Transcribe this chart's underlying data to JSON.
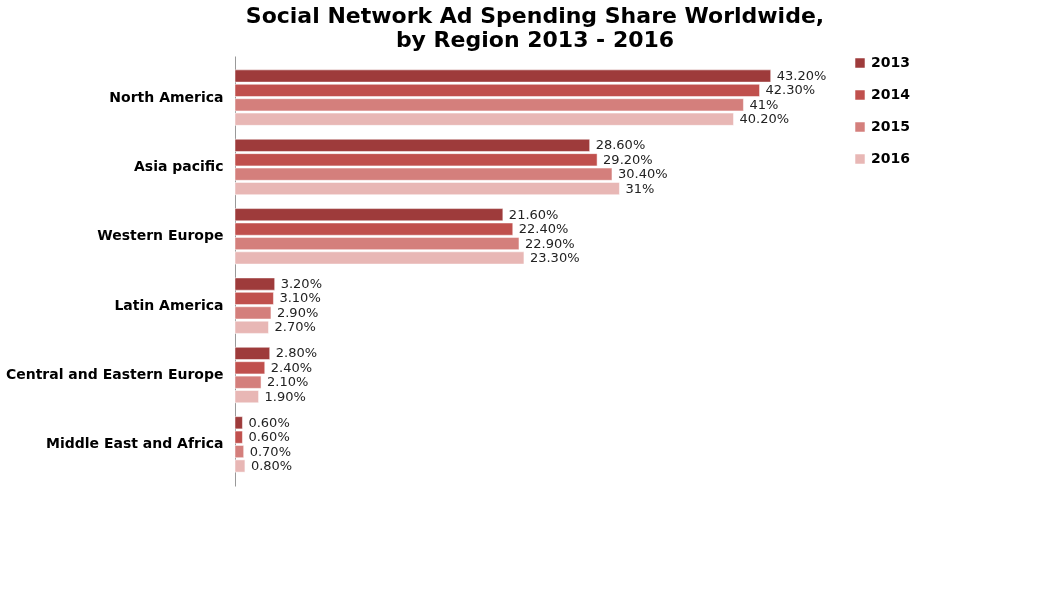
{
  "chart_data": {
    "type": "bar",
    "orientation": "horizontal",
    "title": "Social Network Ad Spending Share Worldwide,\nby Region 2013 - 2016",
    "categories": [
      "North America",
      "Asia pacific",
      "Western Europe",
      "Latin America",
      "Central and Eastern Europe",
      "Middle East and Africa"
    ],
    "series": [
      {
        "name": "2013",
        "color": "#9e3b3b",
        "values": [
          43.2,
          28.6,
          21.6,
          3.2,
          2.8,
          0.6
        ],
        "value_labels": [
          "43.20%",
          "28.60%",
          "21.60%",
          "3.20%",
          "2.80%",
          "0.60%"
        ]
      },
      {
        "name": "2014",
        "color": "#c0504d",
        "values": [
          42.3,
          29.2,
          22.4,
          3.1,
          2.4,
          0.6
        ],
        "value_labels": [
          "42.30%",
          "29.20%",
          "22.40%",
          "3.10%",
          "2.40%",
          "0.60%"
        ]
      },
      {
        "name": "2015",
        "color": "#d47f7c",
        "values": [
          41,
          30.4,
          22.9,
          2.9,
          2.1,
          0.7
        ],
        "value_labels": [
          "41%",
          "30.40%",
          "22.90%",
          "2.90%",
          "2.10%",
          "0.70%"
        ]
      },
      {
        "name": "2016",
        "color": "#e8b7b5",
        "values": [
          40.2,
          31,
          23.3,
          2.7,
          1.9,
          0.8
        ],
        "value_labels": [
          "40.20%",
          "31%",
          "23.30%",
          "2.70%",
          "1.90%",
          "0.80%"
        ]
      }
    ],
    "legend": "right"
  }
}
